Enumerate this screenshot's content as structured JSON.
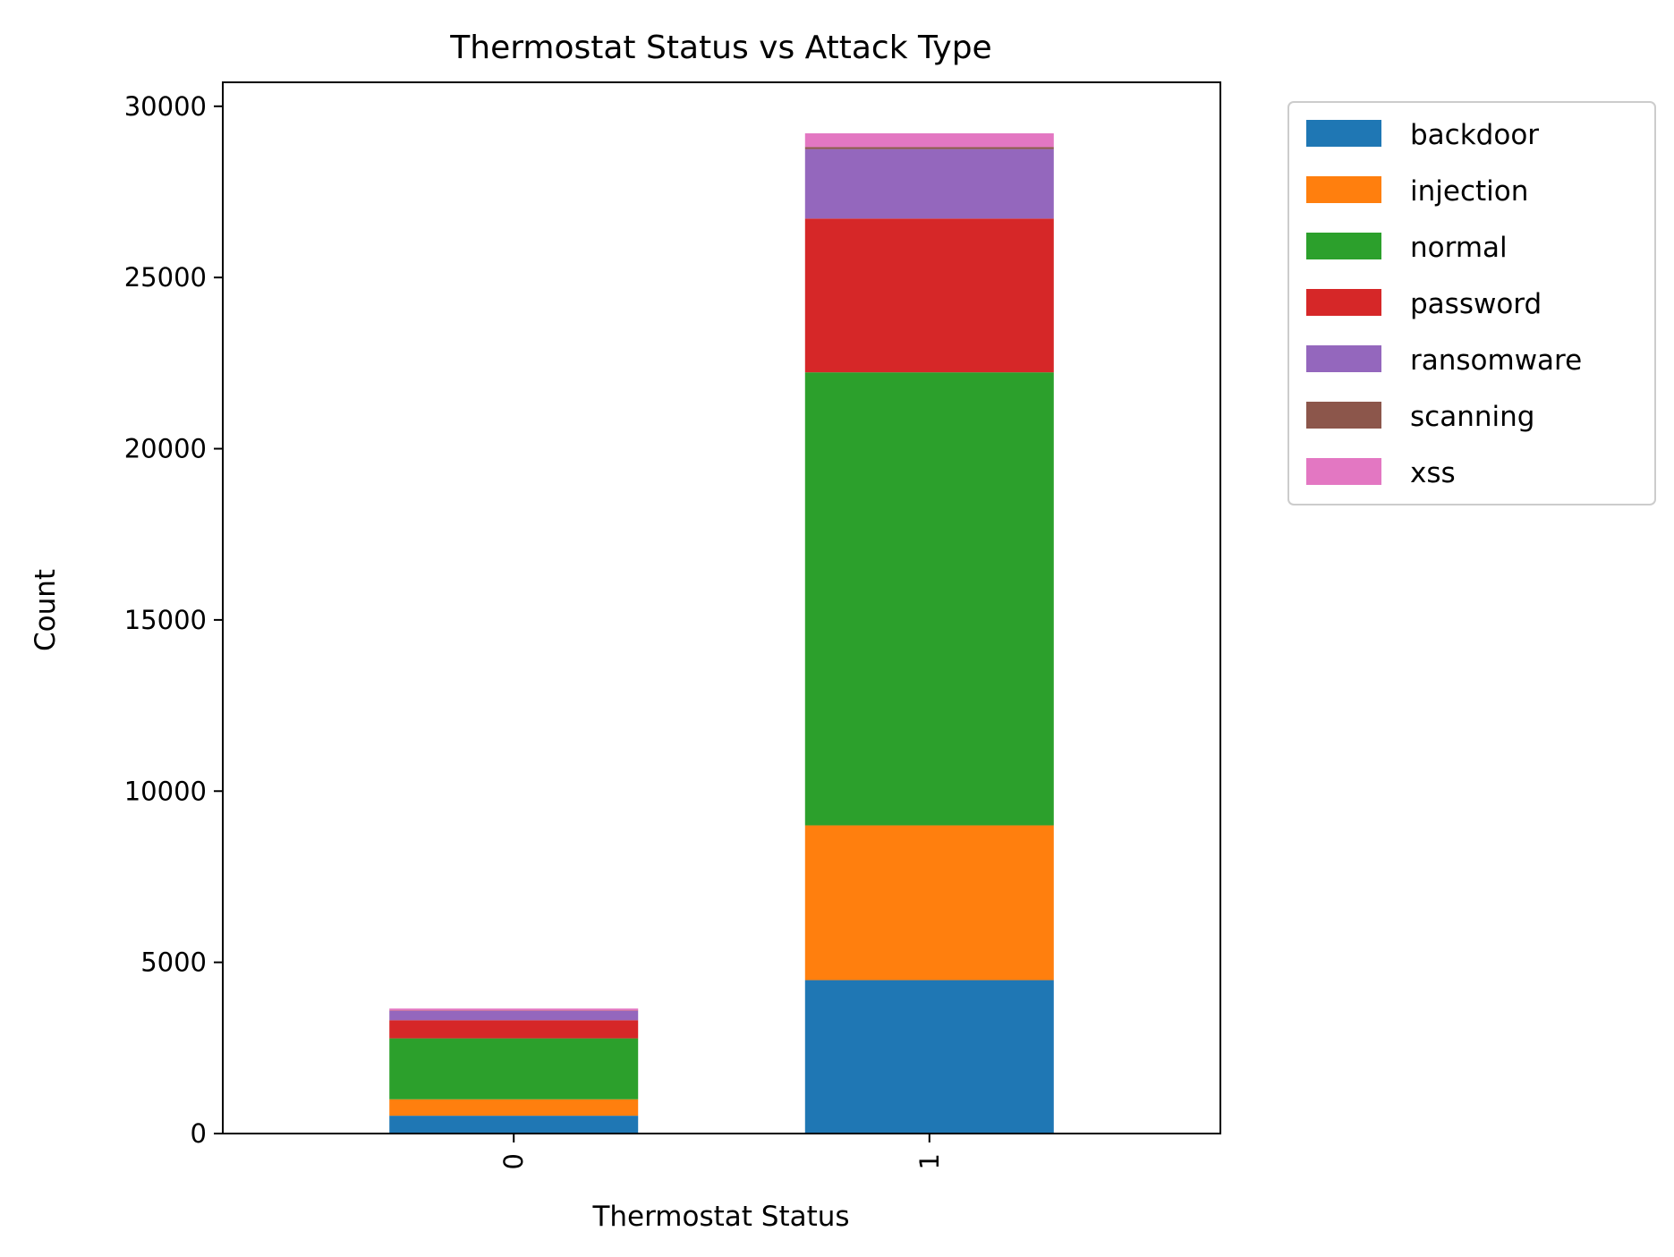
{
  "chart_data": {
    "type": "bar",
    "stacked": true,
    "title": "Thermostat Status vs Attack Type",
    "xlabel": "Thermostat Status",
    "ylabel": "Count",
    "categories": [
      "0",
      "1"
    ],
    "ylim": [
      0,
      30700
    ],
    "yticks": [
      0,
      5000,
      10000,
      15000,
      20000,
      25000,
      30000
    ],
    "grid": false,
    "legend_position": "outside-top-right",
    "series": [
      {
        "name": "backdoor",
        "color": "#1f77b4",
        "values": [
          520,
          4480
        ]
      },
      {
        "name": "injection",
        "color": "#ff7f0e",
        "values": [
          480,
          4520
        ]
      },
      {
        "name": "normal",
        "color": "#2ca02c",
        "values": [
          1780,
          13230
        ]
      },
      {
        "name": "password",
        "color": "#d62728",
        "values": [
          530,
          4490
        ]
      },
      {
        "name": "ransomware",
        "color": "#9467bd",
        "values": [
          270,
          2030
        ]
      },
      {
        "name": "scanning",
        "color": "#8c564b",
        "values": [
          10,
          60
        ]
      },
      {
        "name": "xss",
        "color": "#e377c2",
        "values": [
          60,
          400
        ]
      }
    ]
  }
}
